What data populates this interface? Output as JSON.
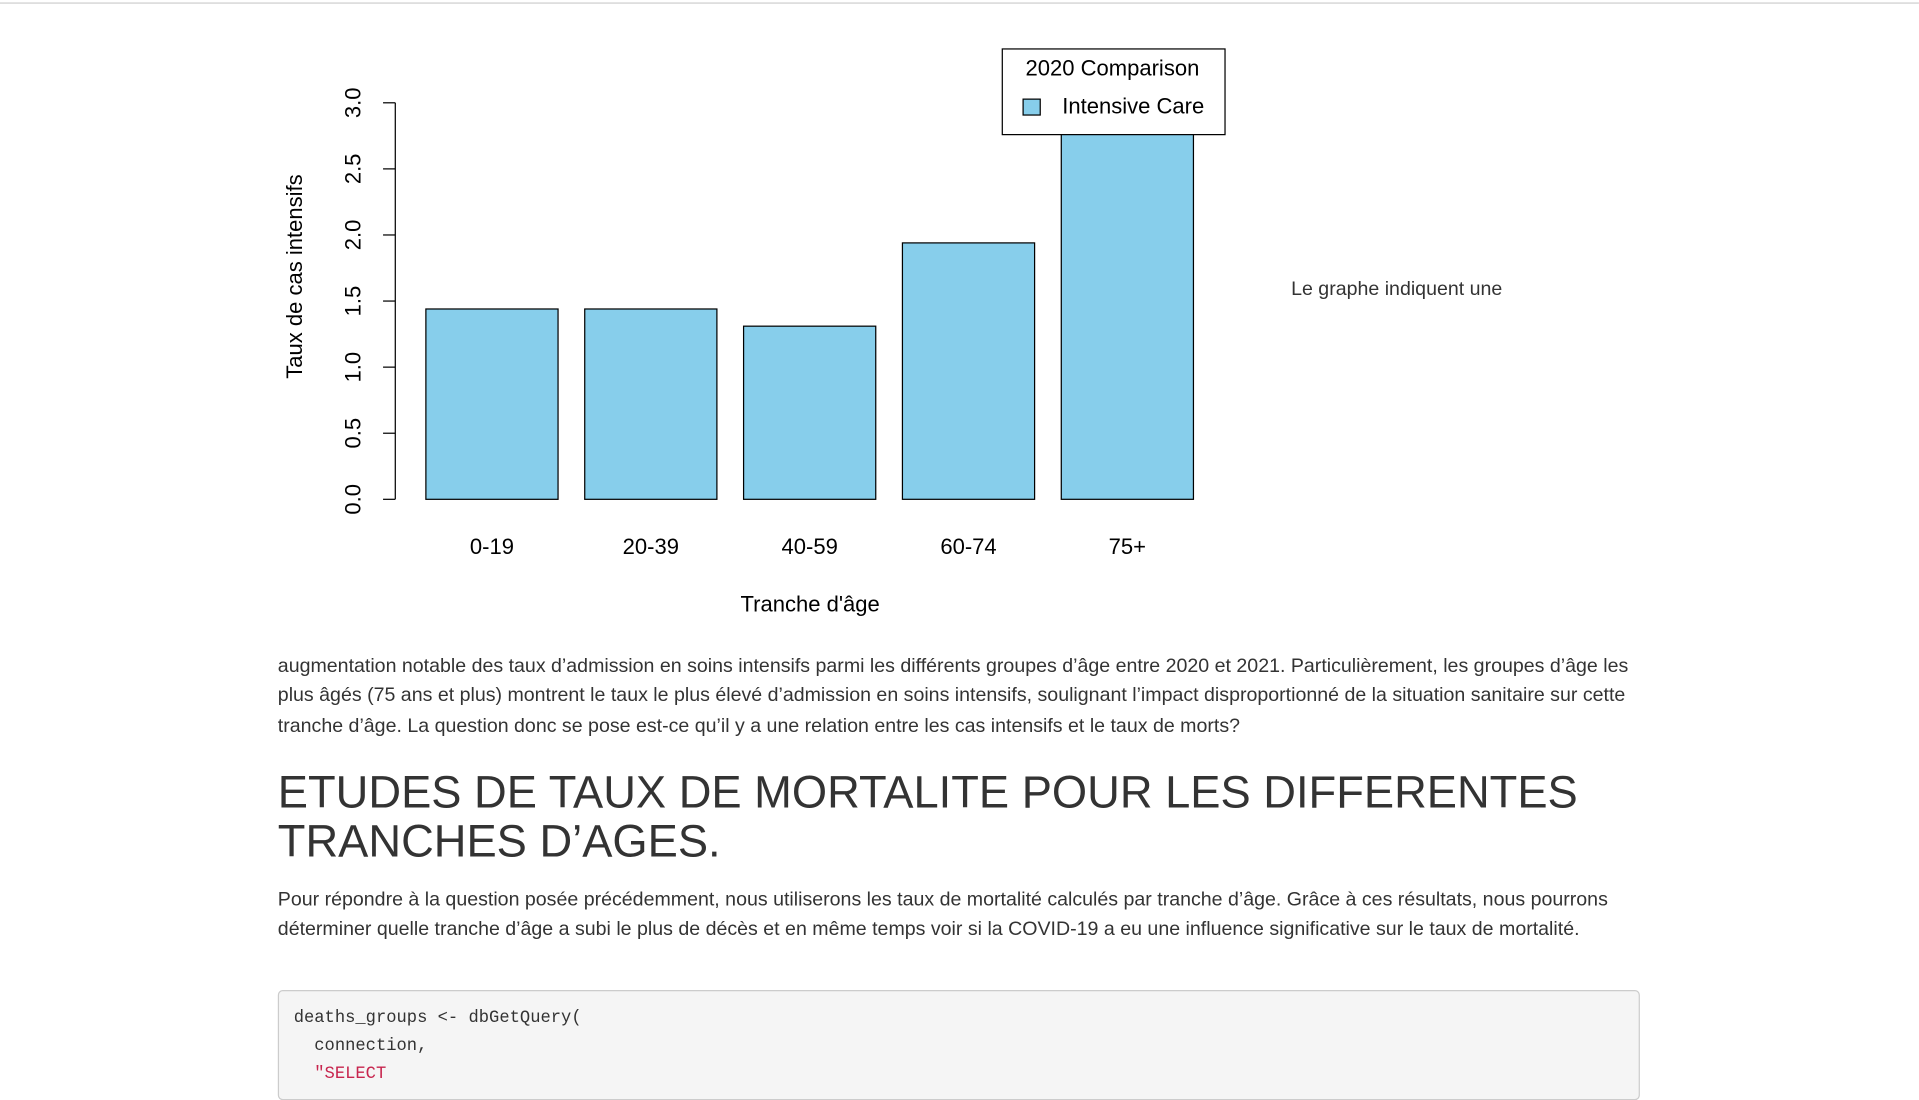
{
  "chart_data": {
    "type": "bar",
    "categories": [
      "0-19",
      "20-39",
      "40-59",
      "60-74",
      "75+"
    ],
    "values": [
      1.44,
      1.44,
      1.31,
      1.94,
      2.9
    ],
    "color": "#87ceeb",
    "ylim": [
      0,
      3
    ],
    "yticks": [
      {
        "value": 0,
        "label": "0.0"
      },
      0.5,
      {
        "value": 1,
        "label": "1.0"
      },
      1.5,
      {
        "value": 2,
        "label": "2.0"
      },
      2.5,
      {
        "value": 3,
        "label": "3.0"
      }
    ],
    "x_label": "Tranche d'âge",
    "y_label": "Taux de cas intensifs",
    "legend": {
      "title": "2020 Comparison",
      "position": "top-right",
      "entries": [
        "Intensive Care"
      ]
    }
  },
  "side_text": "Le graphe indiquent une",
  "paragraph_1": "augmentation notable des taux d’admission en soins intensifs parmi les différents groupes d’âge entre 2020 et 2021. Particulièrement, les groupes d’âge les plus âgés (75 ans et plus) montrent le taux le plus élevé d’admission en soins intensifs, soulignant l’impact disproportionné de la situation sanitaire sur cette tranche d’âge. La question donc se pose est-ce qu’il y a une relation entre les cas intensifs et le taux de morts?",
  "heading": "ETUDES DE TAUX DE MORTALITE POUR LES DIFFERENTES TRANCHES D’AGES.",
  "paragraph_2": "Pour répondre à la question posée précédemment, nous utiliserons les taux de mortalité calculés par tranche d’âge. Grâce à ces résultats, nous pourrons déterminer quelle tranche d’âge a subi le plus de décès et en même temps voir si la COVID-19 a eu une influence significative sur le taux de mortalité.",
  "code": [
    "deaths_groups <- dbGetQuery(",
    "  connection,",
    "  \"SELECT"
  ]
}
